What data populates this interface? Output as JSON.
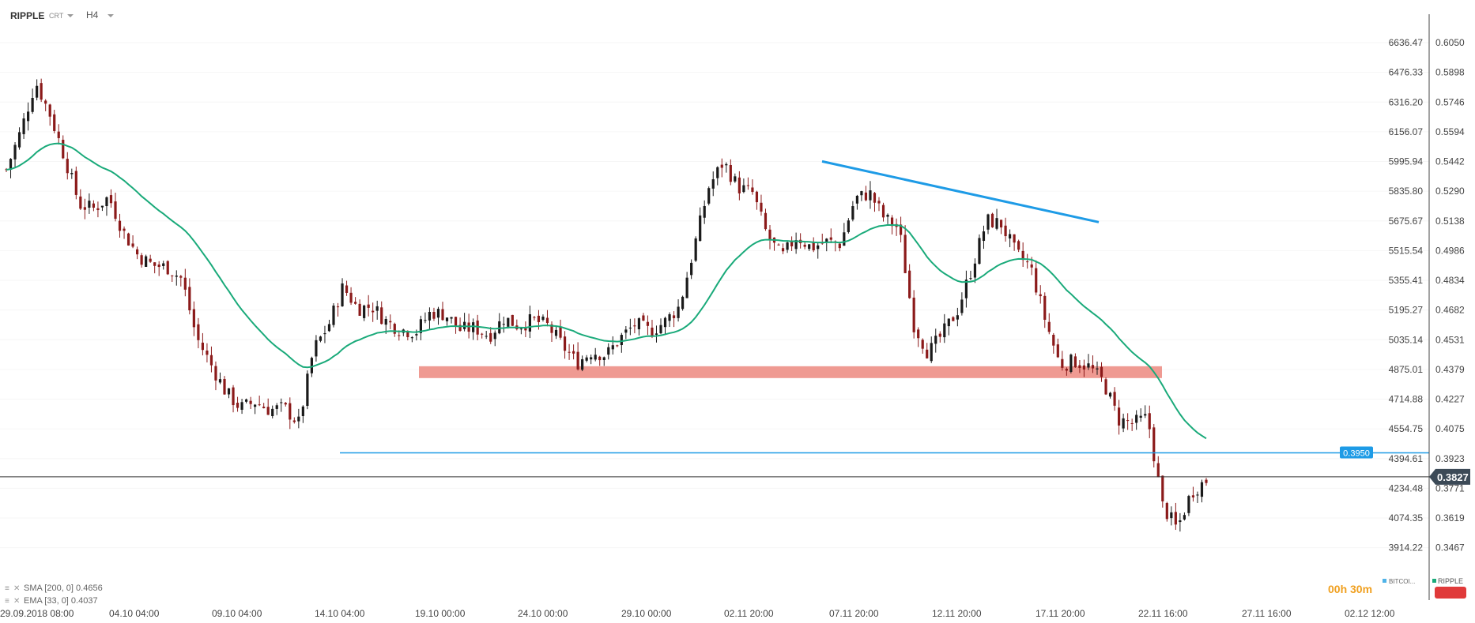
{
  "header": {
    "symbol": "RIPPLE",
    "type_label": "CRT",
    "timeframe": "H4"
  },
  "colors": {
    "bull": "#1a1a1a",
    "bear": "#8b1a1a",
    "ema": "#1aaa7a",
    "trendline": "#1e9be6",
    "support_zone": "#ef9a92",
    "price_line": "#333333",
    "current_badge": "#3c4a57"
  },
  "legend": {
    "sma": "SMA [200, 0] 0.4656",
    "ema": "EMA [33, 0] 0.4037"
  },
  "bottom_right": {
    "countdown": "00h 30m",
    "series_a": "BITCOI...",
    "series_b": "RIPPLE"
  },
  "chart_data": {
    "type": "candlestick",
    "x_labels": [
      "29.09.2018 08:00",
      "04.10 04:00",
      "09.10 04:00",
      "14.10 04:00",
      "19.10 00:00",
      "24.10 00:00",
      "29.10 00:00",
      "02.11 20:00",
      "07.11 20:00",
      "12.11 20:00",
      "17.11 20:00",
      "22.11 16:00",
      "27.11 16:00",
      "02.12 12:00"
    ],
    "y_left_ticks": [
      "6636.47",
      "6476.33",
      "6316.20",
      "6156.07",
      "5995.94",
      "5835.80",
      "5675.67",
      "5515.54",
      "5355.41",
      "5195.27",
      "5035.14",
      "4875.01",
      "4714.88",
      "4554.75",
      "4394.61",
      "4234.48",
      "4074.35",
      "3914.22"
    ],
    "y_right_ticks": [
      "0.6050",
      "0.5898",
      "0.5746",
      "0.5594",
      "0.5442",
      "0.5290",
      "0.5138",
      "0.4986",
      "0.4834",
      "0.4682",
      "0.4531",
      "0.4379",
      "0.4227",
      "0.4075",
      "0.3923",
      "0.3771",
      "0.3619",
      "0.3467"
    ],
    "ylim": [
      0.335,
      0.612
    ],
    "current_price": 0.3827,
    "current_price_label": "0.3827",
    "horizontal_level": 0.395,
    "horizontal_level_label": "0.3950",
    "support_zone": [
      0.4355,
      0.4365
    ],
    "descending_trendline": [
      [
        0,
        0.5442
      ],
      [
        1,
        0.5131
      ]
    ],
    "close_path": [
      0.54,
      0.56,
      0.585,
      0.568,
      0.546,
      0.522,
      0.52,
      0.526,
      0.508,
      0.496,
      0.491,
      0.49,
      0.484,
      0.454,
      0.44,
      0.426,
      0.418,
      0.421,
      0.417,
      0.418,
      0.41,
      0.448,
      0.46,
      0.48,
      0.469,
      0.47,
      0.462,
      0.458,
      0.457,
      0.467,
      0.466,
      0.458,
      0.459,
      0.455,
      0.464,
      0.46,
      0.463,
      0.46,
      0.45,
      0.441,
      0.447,
      0.445,
      0.454,
      0.461,
      0.457,
      0.462,
      0.47,
      0.5,
      0.531,
      0.544,
      0.531,
      0.528,
      0.506,
      0.495,
      0.506,
      0.5,
      0.503,
      0.502,
      0.525,
      0.528,
      0.515,
      0.51,
      0.461,
      0.446,
      0.456,
      0.468,
      0.49,
      0.514,
      0.512,
      0.497,
      0.49,
      0.463,
      0.44,
      0.442,
      0.439,
      0.431,
      0.412,
      0.41,
      0.413,
      0.368,
      0.356,
      0.375,
      0.381
    ]
  }
}
